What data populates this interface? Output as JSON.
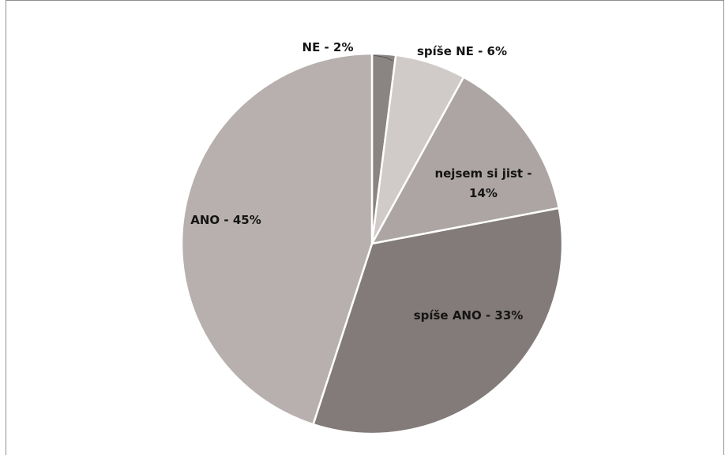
{
  "chart_data": {
    "type": "pie",
    "title": "",
    "start_angle_deg": 0,
    "direction": "clockwise",
    "legend": "none",
    "slices": [
      {
        "label": "NE - 2%",
        "value": 2,
        "color": "#8a8483"
      },
      {
        "label": "spíše NE - 6%",
        "value": 6,
        "color": "#d0cac8"
      },
      {
        "label": "nejsem si jist - 14%",
        "label_lines": [
          "nejsem si jist -",
          "14%"
        ],
        "value": 14,
        "color": "#aca5a3"
      },
      {
        "label": "spíše ANO - 33%",
        "value": 33,
        "color": "#837b79"
      },
      {
        "label": "ANO - 45%",
        "value": 45,
        "color": "#b7b0ae"
      }
    ]
  }
}
